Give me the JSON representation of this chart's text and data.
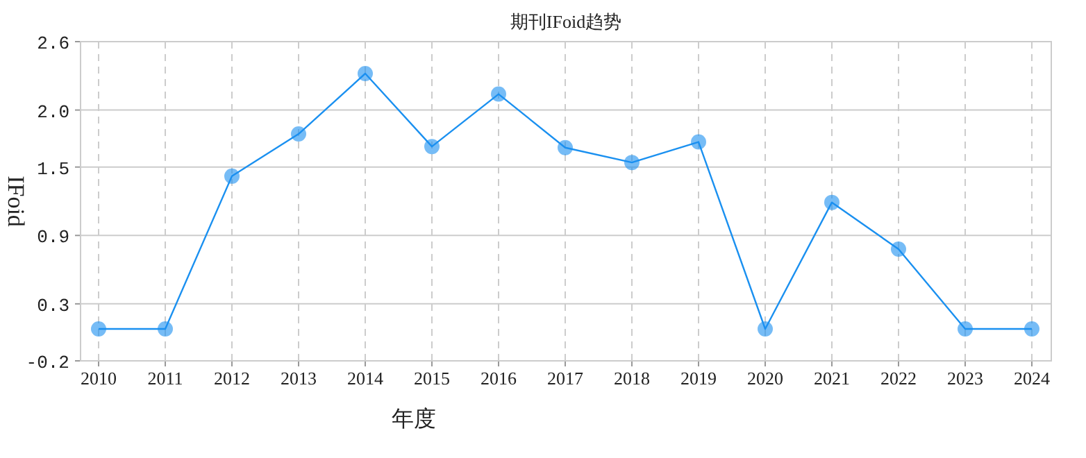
{
  "chart_data": {
    "type": "line",
    "title": "期刊IFoid趋势",
    "xlabel": "年度",
    "ylabel": "IFoid",
    "categories": [
      "2010",
      "2011",
      "2012",
      "2013",
      "2014",
      "2015",
      "2016",
      "2017",
      "2018",
      "2019",
      "2020",
      "2021",
      "2022",
      "2023",
      "2024"
    ],
    "series": [
      {
        "color": "#1a90f0",
        "values": [
          0.08,
          0.08,
          1.42,
          1.79,
          2.32,
          1.68,
          2.14,
          1.67,
          1.54,
          1.72,
          0.08,
          1.19,
          0.78,
          0.08,
          0.08
        ]
      }
    ],
    "ylim": [
      -0.2,
      2.6
    ],
    "yticks": [
      -0.2,
      0.3,
      0.9,
      1.5,
      {
        "value": 2.0,
        "label": "2.0"
      },
      2.6
    ],
    "grid": true,
    "marker": "circle"
  }
}
